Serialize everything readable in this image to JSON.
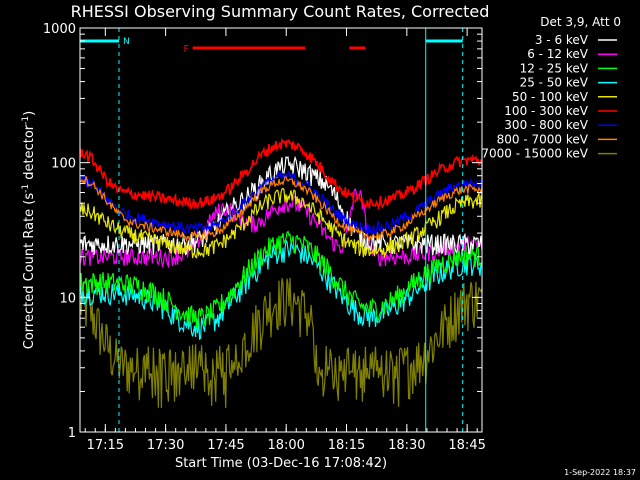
{
  "chart_data": {
    "type": "line",
    "title": "RHESSI Observing Summary Count Rates, Corrected",
    "xlabel": "Start Time (03-Dec-16 17:08:42)",
    "ylabel_main": "Corrected Count Rate (s",
    "ylabel_sup1": "-1",
    "ylabel_mid": " detector",
    "ylabel_sup2": "-1",
    "ylabel_end": ")",
    "yscale": "log",
    "ylim": [
      1,
      1000
    ],
    "xlim_minutes": [
      0,
      100
    ],
    "x_ticks": [
      {
        "label": "17:15",
        "min": 6.3
      },
      {
        "label": "17:30",
        "min": 21.3
      },
      {
        "label": "17:45",
        "min": 36.3
      },
      {
        "label": "18:00",
        "min": 51.3
      },
      {
        "label": "18:15",
        "min": 66.3
      },
      {
        "label": "18:30",
        "min": 81.3
      },
      {
        "label": "18:45",
        "min": 96.3
      }
    ],
    "y_ticks": [
      {
        "label": "1",
        "value": 1
      },
      {
        "label": "10",
        "value": 10
      },
      {
        "label": "100",
        "value": 100
      },
      {
        "label": "1000",
        "value": 1000
      }
    ],
    "legend_header": "Det 3,9, Att 0",
    "legend_position": "top-right",
    "series": [
      {
        "name": "3 - 6 keV",
        "color": "#ffffff"
      },
      {
        "name": "6 - 12 keV",
        "color": "#ff00ff"
      },
      {
        "name": "12 - 25 keV",
        "color": "#00ff00"
      },
      {
        "name": "25 - 50 keV",
        "color": "#00ffff"
      },
      {
        "name": "50 - 100 keV",
        "color": "#e6e600"
      },
      {
        "name": "100 - 300 keV",
        "color": "#ff0000"
      },
      {
        "name": "300 - 800 keV",
        "color": "#0000ff"
      },
      {
        "name": "800 - 7000 keV",
        "color": "#ff8000"
      },
      {
        "name": "7000 - 15000 keV",
        "color": "#808000"
      }
    ],
    "annotations": {
      "flare_label": "F",
      "night_label": "N",
      "flare_segments_minutes": [
        [
          28,
          56
        ],
        [
          67,
          71
        ]
      ],
      "saa_segments_minutes": [
        [
          0,
          9.7
        ],
        [
          86,
          95.2
        ]
      ],
      "boundary_lines_minutes": [
        {
          "min": 9.7,
          "dashed": true
        },
        {
          "min": 86,
          "dashed": false
        },
        {
          "min": 95.2,
          "dashed": true
        }
      ]
    },
    "colors": {
      "background": "#000000",
      "axis": "#ffffff",
      "annotation_flare": "#ff0000",
      "annotation_saa": "#00ffff"
    }
  },
  "footer": {
    "timestamp": "1-Sep-2022 18:37"
  }
}
